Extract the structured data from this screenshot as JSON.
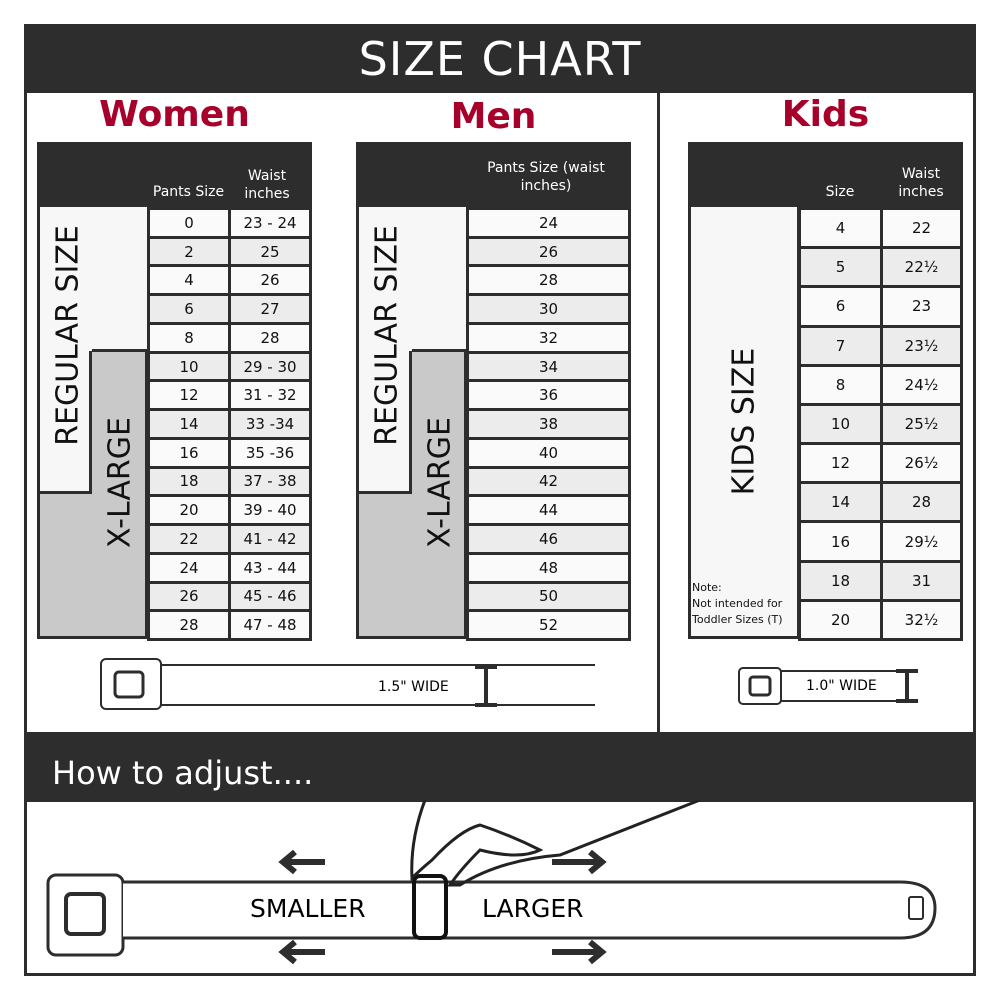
{
  "title": "SIZE CHART",
  "women": {
    "title": "Women",
    "headers": [
      "Pants Size",
      "Waist inches"
    ],
    "regular_label": "REGULAR SIZE",
    "xlarge_label": "X-LARGE",
    "rows": [
      [
        "0",
        "23 - 24"
      ],
      [
        "2",
        "25"
      ],
      [
        "4",
        "26"
      ],
      [
        "6",
        "27"
      ],
      [
        "8",
        "28"
      ],
      [
        "10",
        "29 - 30"
      ],
      [
        "12",
        "31 - 32"
      ],
      [
        "14",
        "33 -34"
      ],
      [
        "16",
        "35 -36"
      ],
      [
        "18",
        "37 - 38"
      ],
      [
        "20",
        "39 - 40"
      ],
      [
        "22",
        "41 - 42"
      ],
      [
        "24",
        "43 - 44"
      ],
      [
        "26",
        "45 - 46"
      ],
      [
        "28",
        "47 - 48"
      ]
    ]
  },
  "men": {
    "title": "Men",
    "header": "Pants Size (waist inches)",
    "regular_label": "REGULAR SIZE",
    "xlarge_label": "X-LARGE",
    "rows": [
      "24",
      "26",
      "28",
      "30",
      "32",
      "34",
      "36",
      "38",
      "40",
      "42",
      "44",
      "46",
      "48",
      "50",
      "52"
    ],
    "belt_width": "1.5\" WIDE"
  },
  "kids": {
    "title": "Kids",
    "headers": [
      "Size",
      "Waist inches"
    ],
    "label": "KIDS SIZE",
    "note_title": "Note:",
    "note": "Not intended for Toddler Sizes (T)",
    "rows": [
      [
        "4",
        "22"
      ],
      [
        "5",
        "22½"
      ],
      [
        "6",
        "23"
      ],
      [
        "7",
        "23½"
      ],
      [
        "8",
        "24½"
      ],
      [
        "10",
        "25½"
      ],
      [
        "12",
        "26½"
      ],
      [
        "14",
        "28"
      ],
      [
        "16",
        "29½"
      ],
      [
        "18",
        "31"
      ],
      [
        "20",
        "32½"
      ]
    ],
    "belt_width": "1.0\" WIDE"
  },
  "adjust": {
    "title": "How to adjust....",
    "smaller": "SMALLER",
    "larger": "LARGER"
  },
  "colors": {
    "accent": "#a6002b",
    "dark": "#2d2d2d",
    "xlarge": "#c9c9c9"
  }
}
